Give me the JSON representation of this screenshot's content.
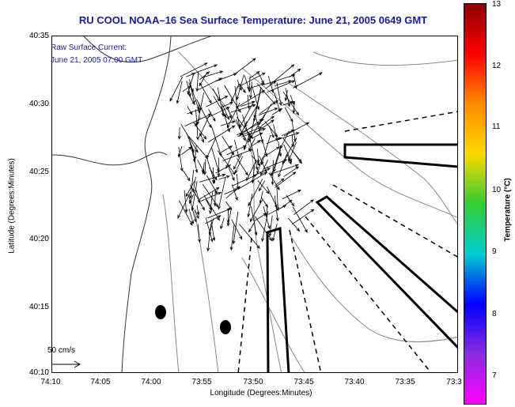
{
  "title": "RU COOL  NOAA–16  Sea Surface Temperature:  June 21, 2005 0649 GMT",
  "legend": {
    "line1": "Raw Surface Current:",
    "line2": "June 21, 2005 07:00 GMT"
  },
  "scale_label": "50 cm/s",
  "axes": {
    "y_label": "Latitude (Degrees:Minutes)",
    "x_label": "Longitude (Degrees:Minutes)",
    "y_ticks": [
      "40:35",
      "40:30",
      "40:25",
      "40:20",
      "40:15",
      "40:10"
    ],
    "x_ticks": [
      "74:10",
      "74:05",
      "74:00",
      "73:55",
      "73:50",
      "73:45",
      "73:40",
      "73:35",
      "73:3"
    ]
  },
  "colorbar": {
    "label": "Temperature (°C)",
    "ticks": [
      "13",
      "12",
      "11",
      "10",
      "9",
      "8",
      "7"
    ],
    "colors": [
      "#8b0000",
      "#ff0000",
      "#ff8c00",
      "#ffd700",
      "#32cd32",
      "#00ced1",
      "#0000ff",
      "#8a2be2",
      "#ff00ff"
    ]
  },
  "colors": {
    "title": "#1a1aa6",
    "coast": "#333333",
    "contour": "#888888"
  }
}
